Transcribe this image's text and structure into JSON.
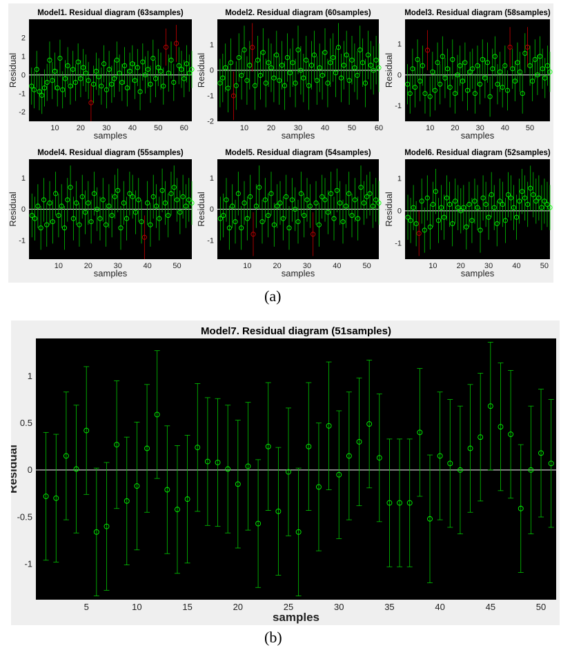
{
  "panel_labels": {
    "a": "(a)",
    "b": "(b)"
  },
  "axis_text": {
    "x": "samples",
    "y": "Residual"
  },
  "colors": {
    "background": "#000000",
    "point": "#00ff00",
    "errorbar": "#00cc00",
    "outlier": "#cc0000",
    "zero_line": "#ffffff",
    "figure": "#efefef"
  },
  "chart_data": [
    {
      "type": "scatter",
      "title": "Model1. Residual diagram (63samples)",
      "xlabel": "samples",
      "ylabel": "Residual",
      "xlim": [
        0,
        63
      ],
      "ylim": [
        -2.5,
        3
      ],
      "xticks": [
        10,
        20,
        30,
        40,
        50,
        60
      ],
      "yticks": [
        -2,
        -1,
        0,
        1,
        2
      ],
      "errorbar_halfwidth": 1.0,
      "outliers": [
        {
          "x": 24,
          "y": -1.5
        },
        {
          "x": 53,
          "y": 1.5
        },
        {
          "x": 57,
          "y": 1.7
        }
      ],
      "values": [
        -0.6,
        -0.8,
        0.3,
        -0.9,
        -1.1,
        -0.7,
        -0.4,
        0.8,
        -0.3,
        0.2,
        -0.7,
        0.9,
        -0.8,
        -0.2,
        0.5,
        -0.6,
        0.3,
        -0.4,
        0.7,
        -0.2,
        0.4,
        0.1,
        -0.3,
        -1.5,
        -0.5,
        0.2,
        -0.1,
        -0.6,
        0.6,
        -0.8,
        0.3,
        -0.5,
        -0.2,
        0.8,
        0.1,
        -0.4,
        0.5,
        -0.7,
        0.2,
        0.6,
        -0.3,
        0.4,
        -0.9,
        0.7,
        0.0,
        0.3,
        -0.5,
        0.9,
        -0.2,
        0.4,
        0.2,
        -0.6,
        1.5,
        0.1,
        0.8,
        -0.4,
        1.7,
        0.5,
        0.3,
        -0.2,
        0.6,
        0.1,
        0.3
      ]
    },
    {
      "type": "scatter",
      "title": "Model2. Residual diagram (60samples)",
      "xlabel": "samples",
      "ylabel": "Residual",
      "xlim": [
        0,
        60
      ],
      "ylim": [
        -2,
        2
      ],
      "xticks": [
        10,
        20,
        30,
        40,
        50,
        60
      ],
      "yticks": [
        -2,
        -1,
        0,
        1
      ],
      "errorbar_halfwidth": 0.95,
      "outliers": [
        {
          "x": 6,
          "y": -1.0
        },
        {
          "x": 13,
          "y": 0.9
        }
      ],
      "values": [
        -0.5,
        -0.3,
        0.1,
        -0.7,
        0.3,
        -1.0,
        -0.6,
        0.5,
        -0.2,
        0.8,
        -0.4,
        0.2,
        0.9,
        -0.6,
        0.4,
        -0.2,
        0.7,
        -0.5,
        0.3,
        0.1,
        -0.3,
        0.6,
        -0.4,
        0.2,
        -0.6,
        0.5,
        -0.1,
        0.3,
        -0.5,
        0.8,
        0.0,
        -0.3,
        0.4,
        -0.6,
        0.2,
        0.6,
        -0.4,
        0.1,
        -0.2,
        0.7,
        -0.5,
        0.3,
        0.5,
        -0.1,
        0.9,
        -0.3,
        0.2,
        0.6,
        -0.4,
        0.4,
        0.1,
        -0.2,
        0.8,
        0.3,
        -0.5,
        0.6,
        0.2,
        0.0,
        0.4,
        0.1
      ]
    },
    {
      "type": "scatter",
      "title": "Model3. Residual diagram (58samples)",
      "xlabel": "samples",
      "ylabel": "Residual",
      "xlim": [
        0,
        58
      ],
      "ylim": [
        -1.5,
        1.8
      ],
      "xticks": [
        10,
        20,
        30,
        40,
        50
      ],
      "yticks": [
        -1,
        0,
        1
      ],
      "errorbar_halfwidth": 0.65,
      "outliers": [
        {
          "x": 9,
          "y": 0.8
        },
        {
          "x": 42,
          "y": 0.9
        },
        {
          "x": 49,
          "y": 0.9
        }
      ],
      "values": [
        -0.3,
        -0.6,
        0.2,
        -0.4,
        0.5,
        -0.2,
        0.3,
        -0.6,
        0.8,
        -0.7,
        0.1,
        -0.5,
        0.4,
        -0.3,
        0.6,
        -0.1,
        0.2,
        -0.4,
        0.5,
        -0.6,
        0.0,
        0.3,
        -0.2,
        0.4,
        -0.5,
        0.1,
        0.2,
        -0.6,
        0.3,
        -0.3,
        0.5,
        -0.1,
        0.4,
        -0.7,
        0.2,
        0.6,
        -0.3,
        0.1,
        -0.4,
        0.3,
        -0.5,
        0.9,
        0.2,
        -0.2,
        0.4,
        0.1,
        -0.6,
        0.7,
        0.9,
        0.3,
        -0.2,
        0.5,
        0.0,
        0.6,
        0.2,
        -0.1,
        0.3,
        0.1
      ]
    },
    {
      "type": "scatter",
      "title": "Model4. Residual diagram (55samples)",
      "xlabel": "samples",
      "ylabel": "Residual",
      "xlim": [
        0,
        55
      ],
      "ylim": [
        -1.6,
        1.6
      ],
      "xticks": [
        10,
        20,
        30,
        40,
        50
      ],
      "yticks": [
        -1,
        0,
        1
      ],
      "errorbar_halfwidth": 0.7,
      "outliers": [
        {
          "x": 39,
          "y": -0.9
        }
      ],
      "values": [
        -0.2,
        -0.3,
        0.1,
        -0.6,
        0.3,
        -0.5,
        0.2,
        -0.4,
        0.5,
        -0.2,
        0.1,
        -0.6,
        0.3,
        0.7,
        -0.3,
        0.2,
        -0.5,
        0.4,
        -0.1,
        0.2,
        -0.4,
        0.5,
        0.0,
        -0.3,
        0.3,
        -0.5,
        0.1,
        -0.2,
        0.4,
        0.6,
        -0.6,
        0.2,
        -0.3,
        0.5,
        0.4,
        -0.1,
        0.3,
        -0.4,
        -0.9,
        0.2,
        -0.5,
        0.4,
        0.1,
        -0.3,
        0.6,
        0.2,
        -0.2,
        0.5,
        0.7,
        0.3,
        -0.1,
        0.4,
        0.1,
        0.3,
        0.2
      ]
    },
    {
      "type": "scatter",
      "title": "Model5. Residual diagram (54samples)",
      "xlabel": "samples",
      "ylabel": "Residual",
      "xlim": [
        0,
        54
      ],
      "ylim": [
        -1.6,
        1.6
      ],
      "xticks": [
        10,
        20,
        30,
        40,
        50
      ],
      "yticks": [
        -1,
        0,
        1
      ],
      "errorbar_halfwidth": 0.7,
      "outliers": [
        {
          "x": 12,
          "y": -0.8
        },
        {
          "x": 32,
          "y": -0.8
        }
      ],
      "values": [
        -0.3,
        -0.2,
        0.3,
        -0.6,
        0.1,
        -0.4,
        0.5,
        -0.6,
        0.2,
        -0.3,
        0.4,
        -0.8,
        0.1,
        0.7,
        -0.4,
        0.3,
        -0.2,
        0.5,
        -0.5,
        0.1,
        0.2,
        -0.3,
        0.4,
        -0.6,
        0.3,
        0.0,
        -0.4,
        0.5,
        -0.2,
        0.3,
        0.1,
        -0.8,
        0.2,
        -0.5,
        0.4,
        0.3,
        -0.1,
        0.5,
        -0.3,
        0.6,
        0.2,
        -0.4,
        0.1,
        0.5,
        -0.2,
        0.3,
        -0.3,
        0.7,
        0.2,
        0.4,
        0.5,
        0.1,
        0.3,
        0.2
      ]
    },
    {
      "type": "scatter",
      "title": "Model6. Residual diagram (52samples)",
      "xlabel": "samples",
      "ylabel": "Residual",
      "xlim": [
        0,
        52
      ],
      "ylim": [
        -1.5,
        1.6
      ],
      "xticks": [
        10,
        20,
        30,
        40,
        50
      ],
      "yticks": [
        -1,
        0,
        1
      ],
      "errorbar_halfwidth": 0.7,
      "outliers": [
        {
          "x": 5,
          "y": -0.7
        }
      ],
      "values": [
        -0.2,
        -0.3,
        0.1,
        -0.4,
        -0.7,
        0.3,
        -0.6,
        0.4,
        -0.5,
        0.2,
        0.6,
        -0.3,
        0.1,
        -0.2,
        0.4,
        0.2,
        -0.4,
        0.3,
        0.1,
        0.0,
        0.1,
        -0.5,
        0.2,
        -0.3,
        0.3,
        0.1,
        -0.6,
        0.4,
        0.2,
        -0.2,
        0.5,
        0.1,
        -0.4,
        0.3,
        0.2,
        -0.3,
        0.5,
        0.4,
        0.1,
        -0.2,
        0.3,
        0.6,
        0.4,
        0.2,
        0.7,
        0.5,
        0.3,
        0.4,
        0.1,
        0.3,
        0.2,
        0.1
      ]
    },
    {
      "type": "scatter",
      "title": "Model7. Residual diagram (51samples)",
      "xlabel": "samples",
      "ylabel": "Residual",
      "xlim": [
        0,
        51.5
      ],
      "ylim": [
        -1.38,
        1.4
      ],
      "xticks": [
        5,
        10,
        15,
        20,
        25,
        30,
        35,
        40,
        45,
        50
      ],
      "yticks": [
        -1,
        -0.5,
        0,
        0.5,
        1
      ],
      "errorbar_halfwidth": 0.68,
      "outliers": [],
      "values": [
        -0.28,
        -0.3,
        0.15,
        0.01,
        0.42,
        -0.66,
        -0.6,
        0.27,
        -0.33,
        -0.17,
        0.23,
        0.59,
        -0.21,
        -0.42,
        -0.31,
        0.24,
        0.09,
        0.08,
        0.01,
        -0.15,
        0.04,
        -0.57,
        0.25,
        -0.44,
        -0.02,
        -0.66,
        0.25,
        -0.18,
        0.47,
        -0.05,
        0.15,
        0.3,
        0.49,
        0.13,
        -0.35,
        -0.35,
        -0.35,
        0.4,
        -0.52,
        0.15,
        0.07,
        0.0,
        0.23,
        0.35,
        0.68,
        0.46,
        0.38,
        -0.41,
        0.0,
        0.18,
        0.07
      ]
    }
  ]
}
